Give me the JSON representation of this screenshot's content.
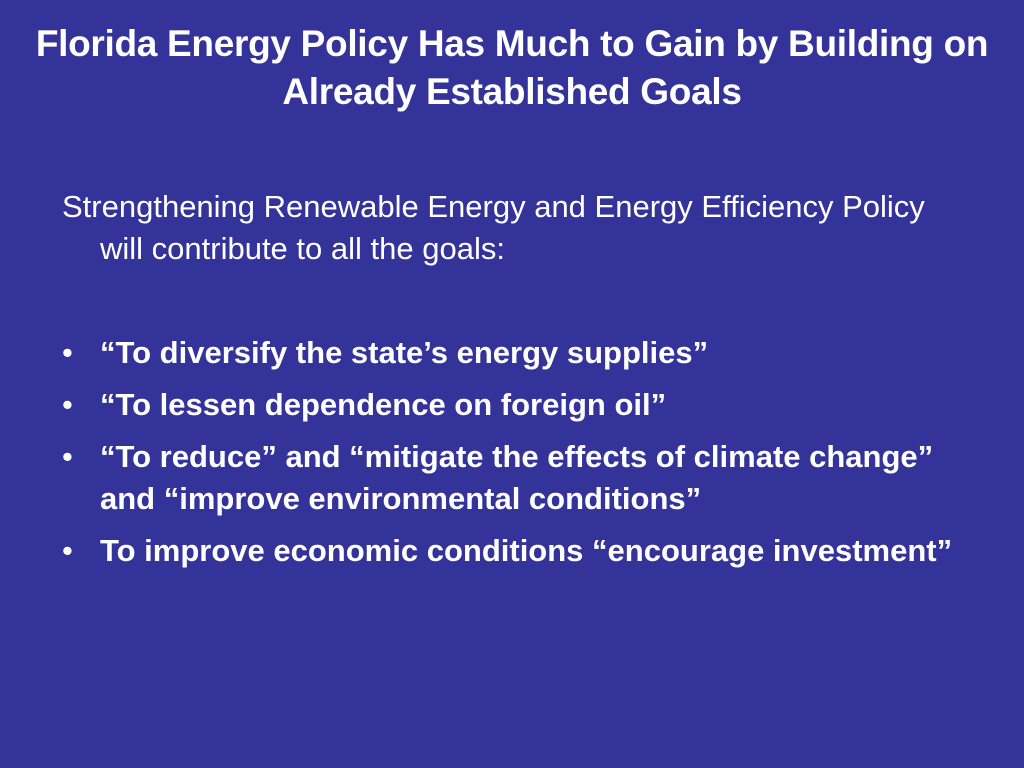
{
  "header": {
    "title": "Florida Energy Policy Has Much to Gain by Building on Already Established Goals"
  },
  "body": {
    "intro": "Strengthening Renewable Energy and Energy Efficiency Policy will contribute to all the goals:",
    "bullets": [
      "“To diversify the state’s energy supplies”",
      "“To lessen dependence on foreign oil”",
      "“To reduce” and “mitigate the effects of climate change” and “improve environmental conditions”",
      "To improve economic conditions “encourage investment”"
    ]
  }
}
